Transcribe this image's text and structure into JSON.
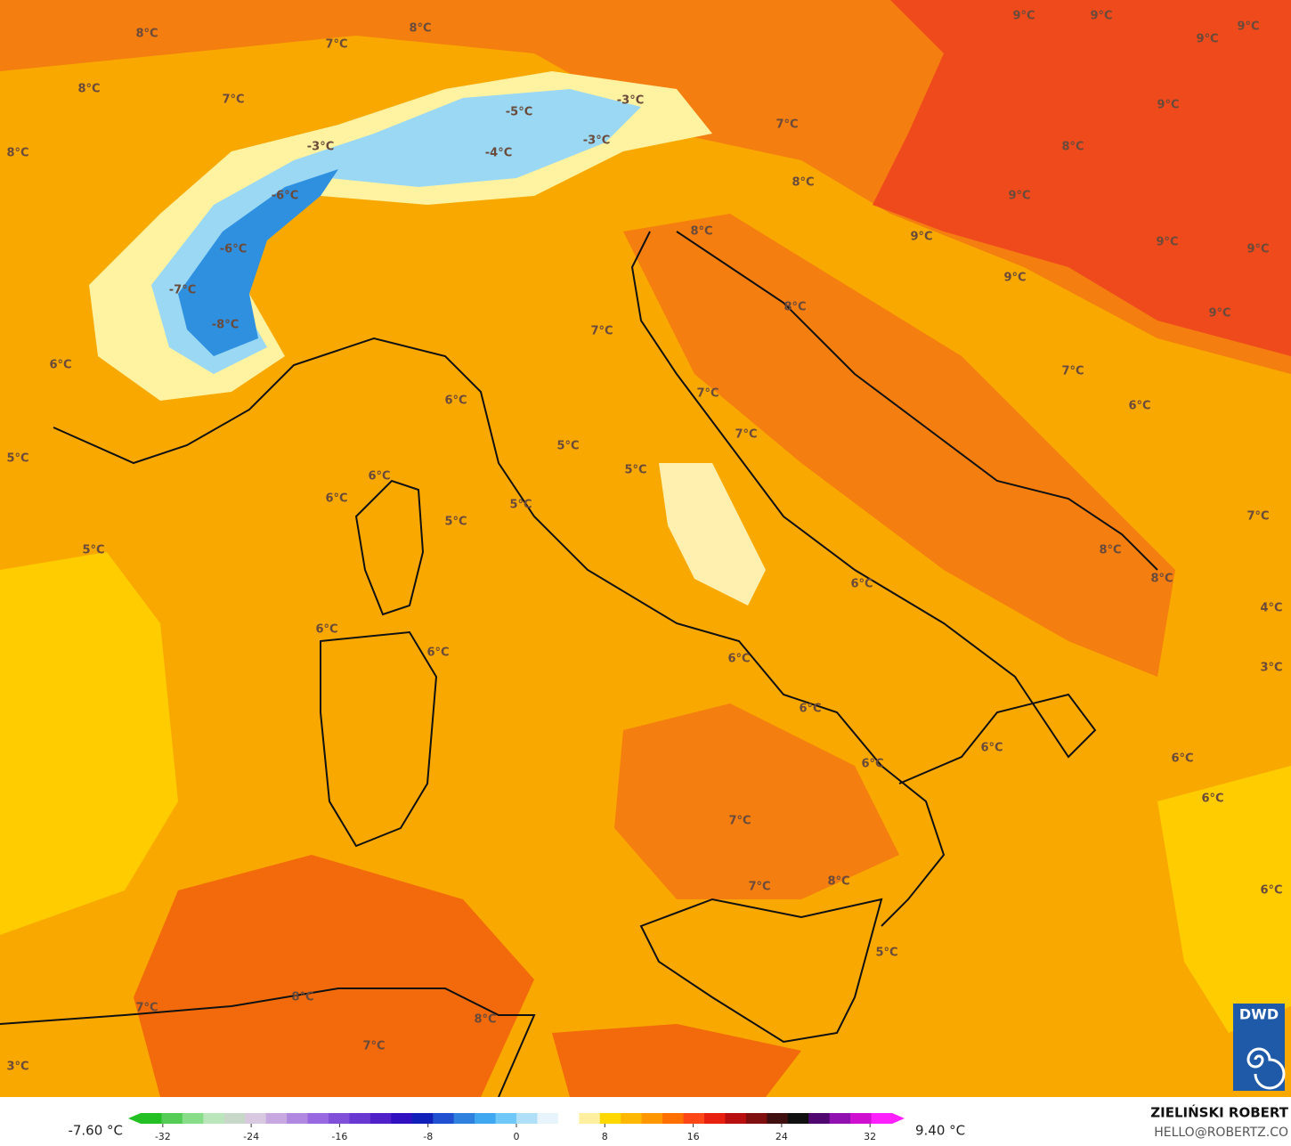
{
  "map": {
    "labels": [
      "8°C",
      "7°C",
      "8°C",
      "8°C",
      "7°C",
      "8°C",
      "-3°C",
      "-5°C",
      "-4°C",
      "-3°C",
      "-3°C",
      "7°C",
      "9°C",
      "9°C",
      "9°C",
      "9°C",
      "9°C",
      "8°C",
      "9°C",
      "9°C",
      "9°C",
      "9°C",
      "9°C",
      "9°C",
      "-6°C",
      "-6°C",
      "-7°C",
      "-8°C",
      "8°C",
      "8°C",
      "8°C",
      "7°C",
      "6°C",
      "6°C",
      "7°C",
      "7°C",
      "7°C",
      "6°C",
      "5°C",
      "5°C",
      "5°C",
      "6°C",
      "6°C",
      "5°C",
      "5°C",
      "5°C",
      "8°C",
      "8°C",
      "7°C",
      "6°C",
      "4°C",
      "6°C",
      "6°C",
      "6°C",
      "3°C",
      "6°C",
      "6°C",
      "6°C",
      "6°C",
      "6°C",
      "7°C",
      "7°C",
      "8°C",
      "6°C",
      "5°C",
      "8°C",
      "7°C",
      "8°C",
      "7°C",
      "3°C"
    ]
  },
  "legend": {
    "min_label": "-7.60 °C",
    "max_label": "9.40 °C",
    "range": [
      -34,
      34
    ],
    "ticks": [
      -32,
      -24,
      -16,
      -8,
      0,
      8,
      16,
      24,
      32
    ],
    "colors": [
      "#22c022",
      "#55cc55",
      "#88dd88",
      "#bbe6bb",
      "#c8d8c8",
      "#d8c8e0",
      "#c8a8e0",
      "#b088e0",
      "#9868e0",
      "#8050d8",
      "#6838d0",
      "#5020c8",
      "#3010c0",
      "#1020b8",
      "#2050d0",
      "#3080e0",
      "#40a8f0",
      "#70c8f8",
      "#b0e0f8",
      "#e8f4fc",
      "#ffffff",
      "#fff0a0",
      "#ffd800",
      "#ffb800",
      "#ff9800",
      "#ff7000",
      "#ff4818",
      "#e82010",
      "#b81010",
      "#801010",
      "#401010",
      "#101010",
      "#500870",
      "#9010b0",
      "#d010d0",
      "#ff20ff"
    ]
  },
  "credit": {
    "author": "ZIELIŃSKI ROBERT",
    "contact": "HELLO@ROBERTZ.CO",
    "logo": "DWD"
  }
}
